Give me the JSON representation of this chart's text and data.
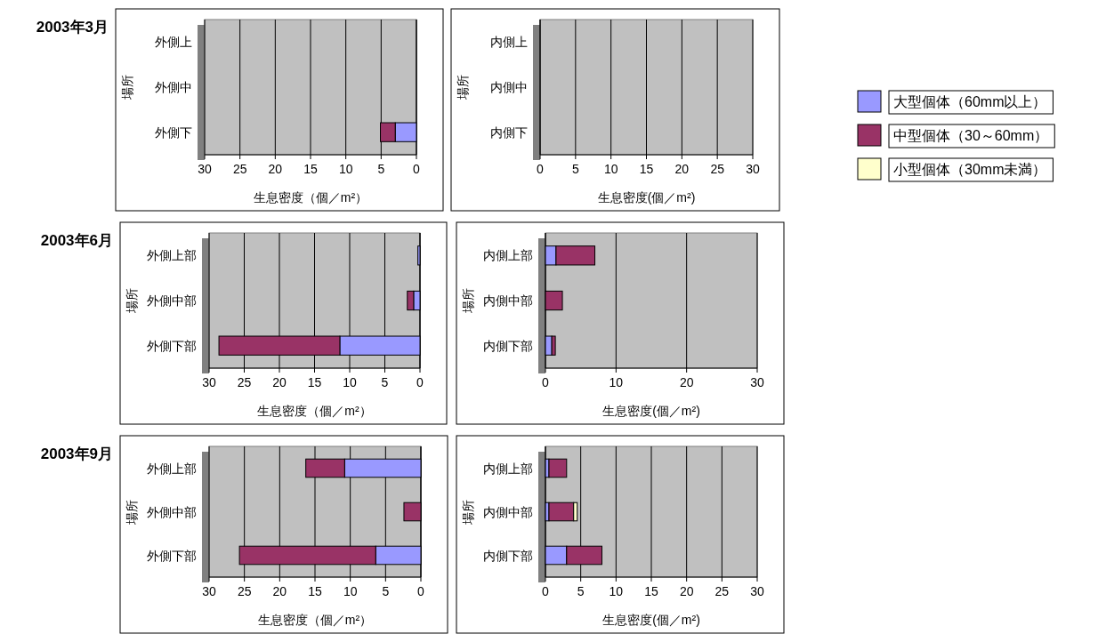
{
  "chart_data": [
    {
      "type": "bar",
      "orientation": "horizontal",
      "stacked": true,
      "title": "2003年3月",
      "ylabel": "場所",
      "xlabel": "生息密度（個／m²）",
      "categories": [
        "外側上",
        "外側中",
        "外側下"
      ],
      "xlim": [
        30,
        0
      ],
      "xticks": [
        30,
        25,
        20,
        15,
        10,
        5,
        0
      ],
      "grid": "x",
      "legend": "right",
      "series": [
        {
          "name": "大型個体（60mm以上）",
          "color": "#9999ff",
          "values": [
            0,
            0,
            3
          ]
        },
        {
          "name": "中型個体（30～60mm）",
          "color": "#993366",
          "values": [
            0,
            0,
            2.1
          ]
        },
        {
          "name": "小型個体（30mm未満）",
          "color": "#ffffcc",
          "values": [
            0,
            0,
            0
          ]
        }
      ]
    },
    {
      "type": "bar",
      "orientation": "horizontal",
      "stacked": true,
      "ylabel": "場所",
      "xlabel": "生息密度(個／m²)",
      "categories": [
        "内側上",
        "内側中",
        "内側下"
      ],
      "xlim": [
        0,
        30
      ],
      "xticks": [
        0,
        5,
        10,
        15,
        20,
        25,
        30
      ],
      "grid": "x",
      "series": [
        {
          "color": "#9999ff",
          "values": [
            0,
            0,
            0
          ]
        },
        {
          "color": "#993366",
          "values": [
            0,
            0,
            0
          ]
        },
        {
          "color": "#ffffcc",
          "values": [
            0,
            0,
            0
          ]
        }
      ]
    },
    {
      "type": "bar",
      "orientation": "horizontal",
      "stacked": true,
      "title": "2003年6月",
      "ylabel": "場所",
      "xlabel": "生息密度（個／m²）",
      "categories": [
        "外側上部",
        "外側中部",
        "外側下部"
      ],
      "xlim": [
        30,
        0
      ],
      "xticks": [
        30,
        25,
        20,
        15,
        10,
        5,
        0
      ],
      "grid": "x",
      "series": [
        {
          "color": "#9999ff",
          "values": [
            0.3,
            0.9,
            11.4
          ]
        },
        {
          "color": "#993366",
          "values": [
            0,
            0.9,
            17.2
          ]
        },
        {
          "color": "#ffffcc",
          "values": [
            0,
            0,
            0
          ]
        }
      ]
    },
    {
      "type": "bar",
      "orientation": "horizontal",
      "stacked": true,
      "ylabel": "場所",
      "xlabel": "生息密度(個／m²)",
      "categories": [
        "内側上部",
        "内側中部",
        "内側下部"
      ],
      "xlim": [
        0,
        30
      ],
      "xticks": [
        0,
        10,
        20,
        30
      ],
      "grid": "x",
      "series": [
        {
          "color": "#9999ff",
          "values": [
            1.5,
            0,
            0.9
          ]
        },
        {
          "color": "#993366",
          "values": [
            5.5,
            2.4,
            0.5
          ]
        },
        {
          "color": "#ffffcc",
          "values": [
            0,
            0,
            0
          ]
        }
      ]
    },
    {
      "type": "bar",
      "orientation": "horizontal",
      "stacked": true,
      "title": "2003年9月",
      "ylabel": "場所",
      "xlabel": "生息密度（個／m²）",
      "categories": [
        "外側上部",
        "外側中部",
        "外側下部"
      ],
      "xlim": [
        30,
        0
      ],
      "xticks": [
        30,
        25,
        20,
        15,
        10,
        5,
        0
      ],
      "grid": "x",
      "series": [
        {
          "color": "#9999ff",
          "values": [
            10.8,
            0,
            6.4
          ]
        },
        {
          "color": "#993366",
          "values": [
            5.5,
            2.4,
            19.3
          ]
        },
        {
          "color": "#ffffcc",
          "values": [
            0,
            0,
            0
          ]
        }
      ]
    },
    {
      "type": "bar",
      "orientation": "horizontal",
      "stacked": true,
      "ylabel": "場所",
      "xlabel": "生息密度(個／m²)",
      "categories": [
        "内側上部",
        "内側中部",
        "内側下部"
      ],
      "xlim": [
        0,
        30
      ],
      "xticks": [
        0,
        5,
        10,
        15,
        20,
        25,
        30
      ],
      "grid": "x",
      "series": [
        {
          "color": "#9999ff",
          "values": [
            0.5,
            0.5,
            3.0
          ]
        },
        {
          "color": "#993366",
          "values": [
            2.5,
            3.5,
            5.0
          ]
        },
        {
          "color": "#ffffcc",
          "values": [
            0,
            0.5,
            0
          ]
        }
      ]
    }
  ]
}
